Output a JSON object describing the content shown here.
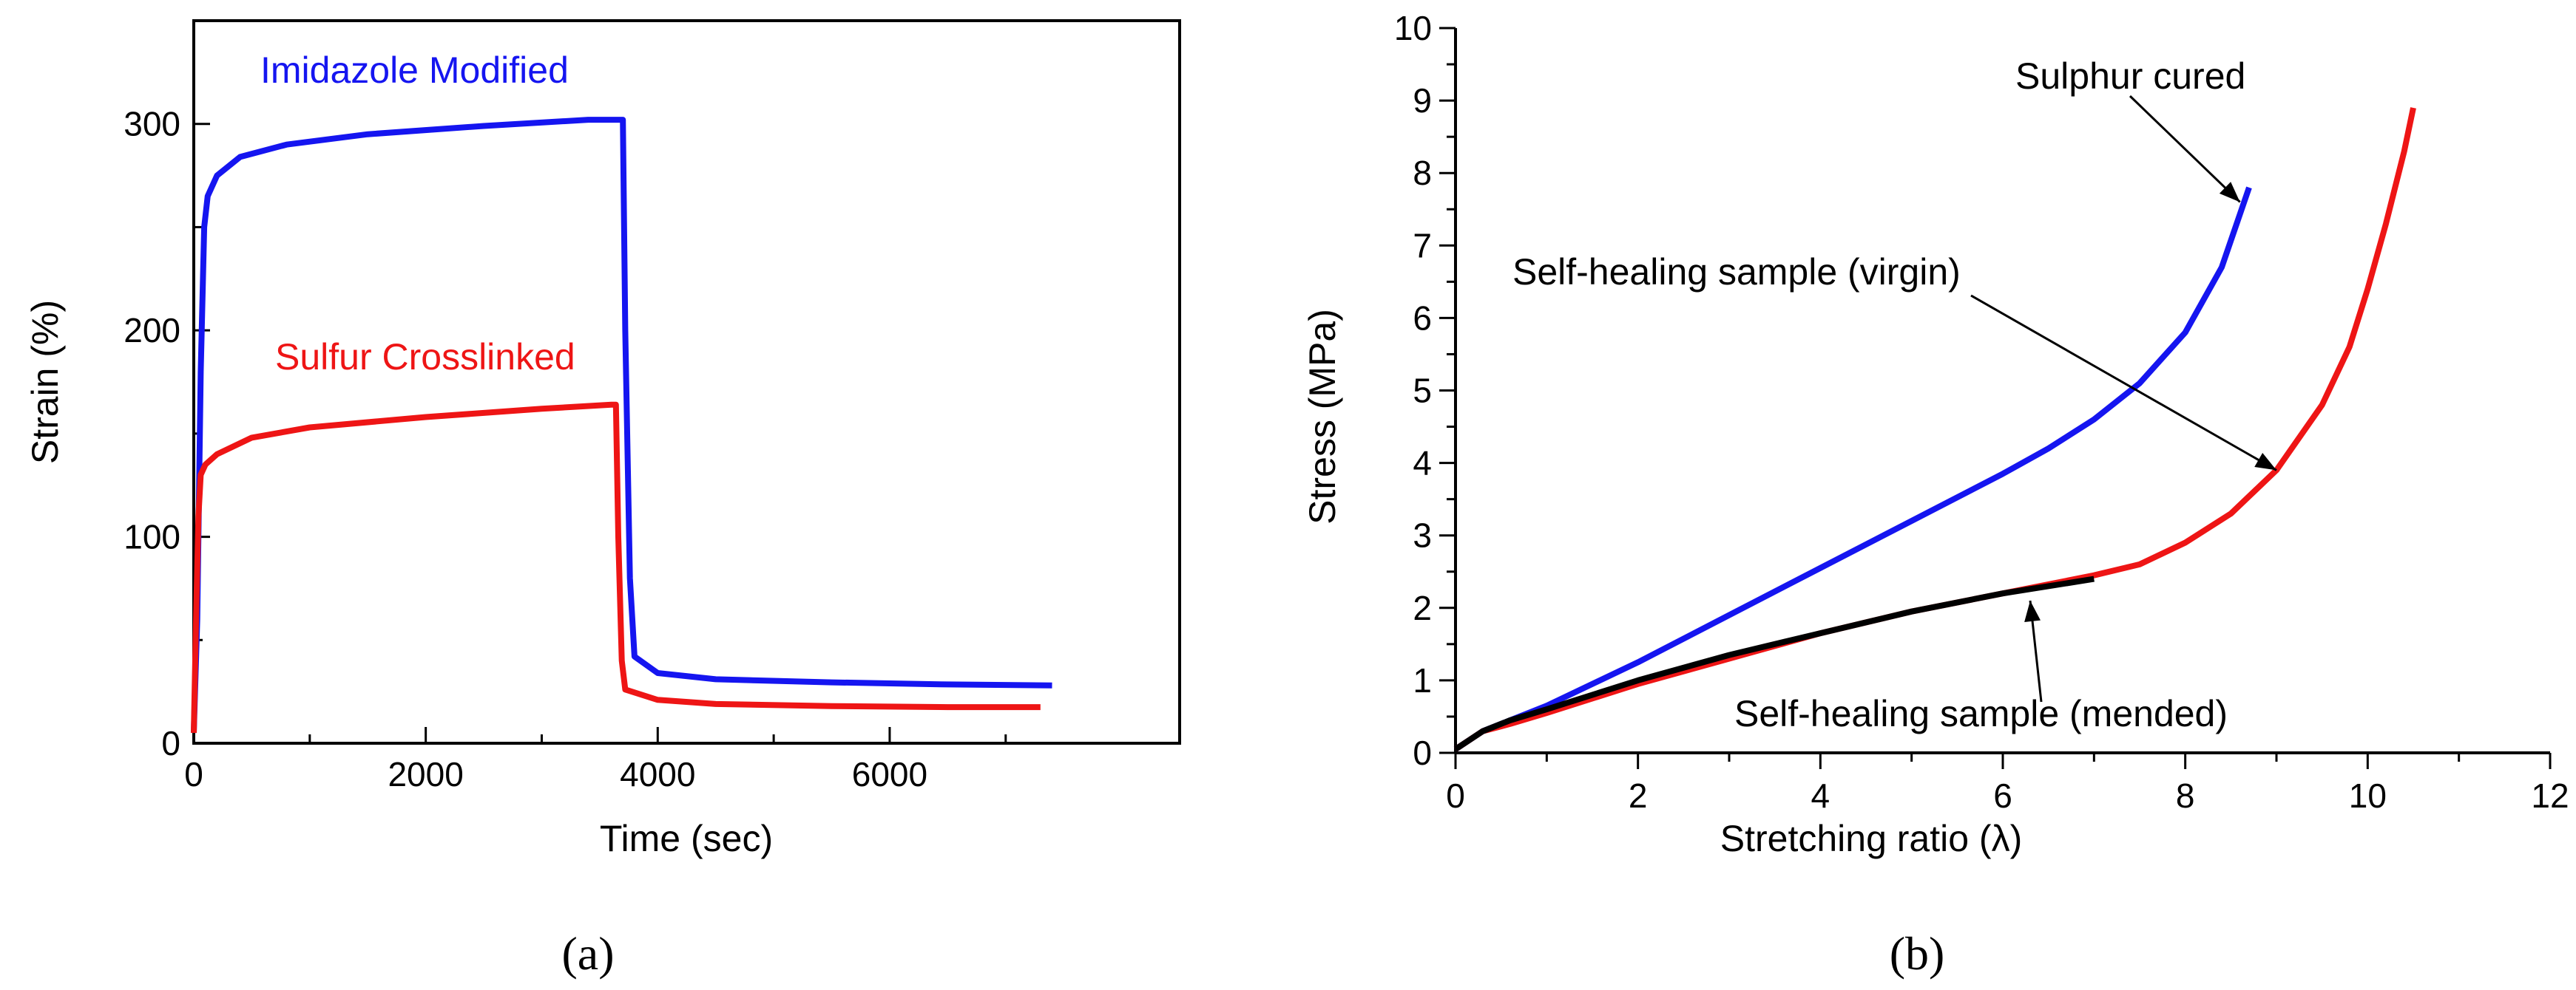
{
  "chart_data": [
    {
      "type": "line",
      "panel_label": "(a)",
      "xlabel": "Time (sec)",
      "ylabel": "Strain (%)",
      "xlim": [
        0,
        8500
      ],
      "ylim": [
        0,
        350
      ],
      "xticks": [
        0,
        2000,
        4000,
        6000
      ],
      "yticks": [
        0,
        100,
        200,
        300
      ],
      "xtick_labels": [
        "0",
        "2000",
        "4000",
        "6000"
      ],
      "ytick_labels": [
        "0",
        "100",
        "200",
        "300"
      ],
      "series": [
        {
          "name": "Imidazole Modified",
          "color": "#1515f0",
          "points": [
            [
              0,
              5
            ],
            [
              30,
              60
            ],
            [
              60,
              180
            ],
            [
              90,
              250
            ],
            [
              120,
              265
            ],
            [
              200,
              275
            ],
            [
              400,
              284
            ],
            [
              800,
              290
            ],
            [
              1500,
              295
            ],
            [
              2500,
              299
            ],
            [
              3400,
              302
            ],
            [
              3700,
              302
            ],
            [
              3720,
              200
            ],
            [
              3760,
              80
            ],
            [
              3800,
              42
            ],
            [
              4000,
              34
            ],
            [
              4500,
              31
            ],
            [
              5500,
              29.5
            ],
            [
              6500,
              28.5
            ],
            [
              7400,
              28
            ]
          ]
        },
        {
          "name": "Sulfur Crosslinked",
          "color": "#ee1515",
          "points": [
            [
              0,
              5
            ],
            [
              20,
              60
            ],
            [
              40,
              110
            ],
            [
              60,
              130
            ],
            [
              100,
              135
            ],
            [
              200,
              140
            ],
            [
              500,
              148
            ],
            [
              1000,
              153
            ],
            [
              2000,
              158
            ],
            [
              3000,
              162
            ],
            [
              3600,
              164
            ],
            [
              3640,
              164
            ],
            [
              3660,
              100
            ],
            [
              3690,
              40
            ],
            [
              3720,
              26
            ],
            [
              4000,
              21
            ],
            [
              4500,
              19
            ],
            [
              5500,
              18
            ],
            [
              6500,
              17.5
            ],
            [
              7300,
              17.5
            ]
          ]
        }
      ]
    },
    {
      "type": "line",
      "panel_label": "(b)",
      "xlabel": "Stretching ratio (λ)",
      "ylabel": "Stress (MPa)",
      "xlim": [
        0,
        12
      ],
      "ylim": [
        0,
        10
      ],
      "xticks": [
        0,
        2,
        4,
        6,
        8,
        10,
        12
      ],
      "yticks": [
        0,
        1,
        2,
        3,
        4,
        5,
        6,
        7,
        8,
        9,
        10
      ],
      "xtick_labels": [
        "0",
        "2",
        "4",
        "6",
        "8",
        "10",
        "12"
      ],
      "ytick_labels": [
        "0",
        "1",
        "2",
        "3",
        "4",
        "5",
        "6",
        "7",
        "8",
        "9",
        "10"
      ],
      "series": [
        {
          "name": "Sulphur cured",
          "color": "#1515f0",
          "points": [
            [
              0,
              0.05
            ],
            [
              0.3,
              0.3
            ],
            [
              0.6,
              0.45
            ],
            [
              1,
              0.65
            ],
            [
              2,
              1.25
            ],
            [
              3,
              1.9
            ],
            [
              4,
              2.55
            ],
            [
              5,
              3.2
            ],
            [
              6,
              3.85
            ],
            [
              6.5,
              4.2
            ],
            [
              7,
              4.6
            ],
            [
              7.5,
              5.1
            ],
            [
              8,
              5.8
            ],
            [
              8.4,
              6.7
            ],
            [
              8.7,
              7.8
            ]
          ]
        },
        {
          "name": "Self-healing sample (virgin)",
          "color": "#ee1515",
          "points": [
            [
              0,
              0.05
            ],
            [
              0.3,
              0.3
            ],
            [
              0.6,
              0.4
            ],
            [
              1,
              0.55
            ],
            [
              2,
              0.95
            ],
            [
              3,
              1.3
            ],
            [
              4,
              1.65
            ],
            [
              5,
              1.95
            ],
            [
              6,
              2.2
            ],
            [
              7,
              2.45
            ],
            [
              7.5,
              2.6
            ],
            [
              8,
              2.9
            ],
            [
              8.5,
              3.3
            ],
            [
              9,
              3.9
            ],
            [
              9.5,
              4.8
            ],
            [
              9.8,
              5.6
            ],
            [
              10,
              6.4
            ],
            [
              10.2,
              7.3
            ],
            [
              10.4,
              8.3
            ],
            [
              10.5,
              8.9
            ]
          ]
        },
        {
          "name": "Self-healing sample (mended)",
          "color": "#000000",
          "points": [
            [
              0,
              0.05
            ],
            [
              0.3,
              0.3
            ],
            [
              0.6,
              0.45
            ],
            [
              1,
              0.6
            ],
            [
              2,
              1.0
            ],
            [
              3,
              1.35
            ],
            [
              4,
              1.65
            ],
            [
              5,
              1.95
            ],
            [
              6,
              2.2
            ],
            [
              7,
              2.4
            ]
          ]
        }
      ],
      "annotations": [
        {
          "text": "Sulphur cured",
          "points_to": [
            8.6,
            7.6
          ]
        },
        {
          "text": "Self-healing sample (virgin)",
          "points_to": [
            9.0,
            3.9
          ]
        },
        {
          "text": "Self-healing sample (mended)",
          "points_to": [
            6.3,
            2.1
          ]
        }
      ]
    }
  ]
}
